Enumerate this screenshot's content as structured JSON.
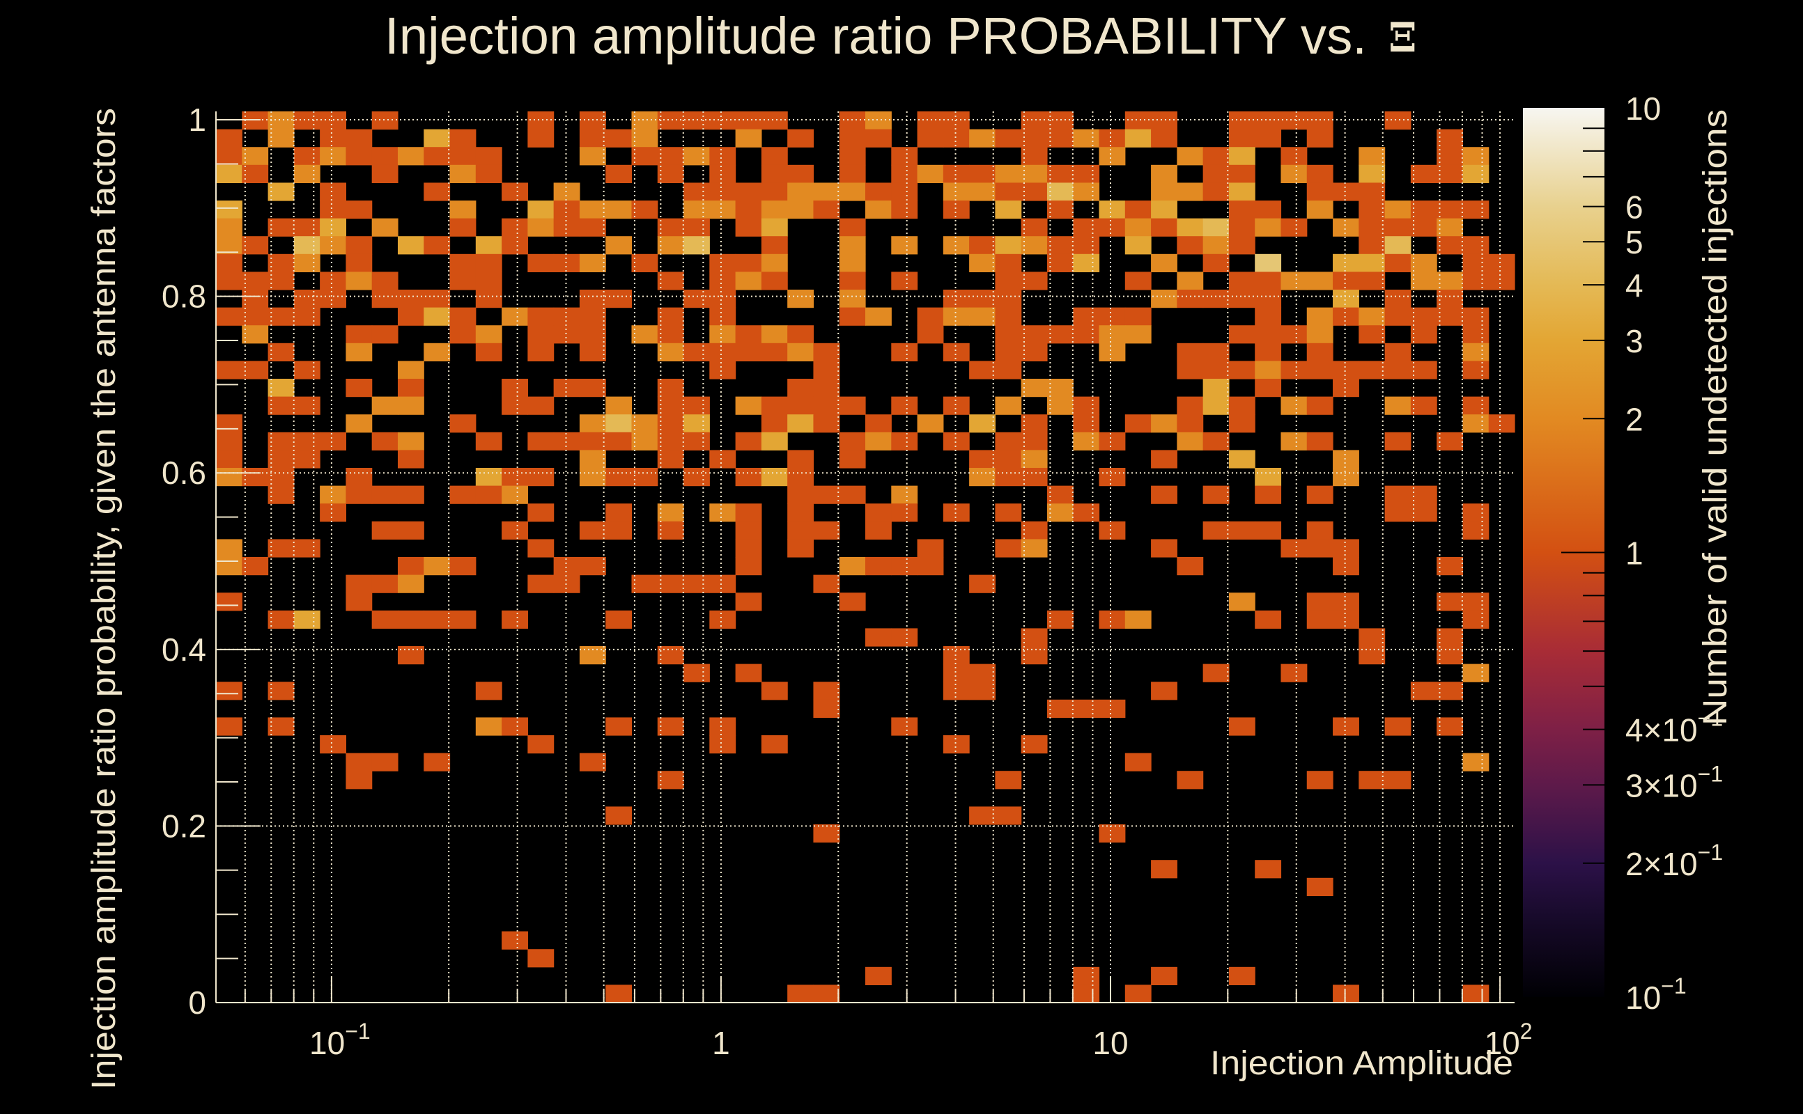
{
  "chart_data": {
    "type": "heatmap",
    "title": "Injection amplitude ratio PROBABILITY vs.",
    "title_symbol": "Ξ",
    "xlabel": "Injection Amplitude",
    "ylabel": "Injection amplitude ratio probability, given the antenna factors",
    "zlabel": "Number of valid undetected injections",
    "x_scale": "log",
    "xlim": [
      0.0505,
      109
    ],
    "ylim": [
      0,
      1.0095
    ],
    "z_scale": "log",
    "zlim": [
      0.1,
      10
    ],
    "grid": true,
    "x_bins": 50,
    "y_bins": 50,
    "x_ticks": [
      {
        "value": 0.1,
        "base": "10",
        "exp": "−1"
      },
      {
        "value": 1,
        "base": "1",
        "exp": ""
      },
      {
        "value": 10,
        "base": "10",
        "exp": ""
      },
      {
        "value": 100,
        "base": "10",
        "exp": "2"
      }
    ],
    "y_ticks": [
      {
        "value": 0,
        "label": "0"
      },
      {
        "value": 0.2,
        "label": "0.2"
      },
      {
        "value": 0.4,
        "label": "0.4"
      },
      {
        "value": 0.6,
        "label": "0.6"
      },
      {
        "value": 0.8,
        "label": "0.8"
      },
      {
        "value": 1,
        "label": "1"
      }
    ],
    "z_ticks": [
      {
        "value": 10,
        "base": "10",
        "exp": ""
      },
      {
        "value": 6,
        "base": "6",
        "exp": ""
      },
      {
        "value": 5,
        "base": "5",
        "exp": ""
      },
      {
        "value": 4,
        "base": "4",
        "exp": ""
      },
      {
        "value": 3,
        "base": "3",
        "exp": ""
      },
      {
        "value": 2,
        "base": "2",
        "exp": ""
      },
      {
        "value": 1,
        "base": "1",
        "exp": ""
      },
      {
        "value": 0.4,
        "base": "4×10",
        "exp": "−1"
      },
      {
        "value": 0.3,
        "base": "3×10",
        "exp": "−1"
      },
      {
        "value": 0.2,
        "base": "2×10",
        "exp": "−1"
      },
      {
        "value": 0.1,
        "base": "10",
        "exp": "−1"
      }
    ],
    "z_minor_ticks": [
      9,
      8,
      7,
      0.9,
      0.8,
      0.7,
      0.6,
      0.5
    ],
    "counts_legend": "rows listed from top y bin to bottom y bin; characters are x bins from low to high amplitude; '.' = 0",
    "counts": [
      ".1211.1.....1.1.211111..12.11..11..11..1111..1....",
      "1.2.11..31..1.112...2.1.11.1121112131..11.1....1..",
      "12.12112111...2.1121.1..1.1....1..2..213.1..2..12.",
      "31.2..1..21....1.1.1.11.1.12112211..2.11.21.3.113.",
      "..3.1...1..1.2....111122211.221142..2213..111.....",
      "3...11...2..31221.221221.21.1.3.1.313..11.2.12111.",
      "2.113.2..1.1211..11.13..1......1.112134121.21112..",
      "21.421.31.31...2.24..1..2.2.213211.3.121....14.11.",
      "1.12.1...11.112.1..112..2....21.13..2.1.5..3312.11",
      "111.121..11......1.121..1.1...11...1.2.112211.2211",
      ".1.11.111.1...11..11..2.2...111.....21111..3.1.1..",
      "1111...131.2111..1.1....12.1221..111....1.2121111.",
      ".2...11..12.111.21.2121....1..111122...1112.1.1.1.",
      "..1..2..2.1.1.1..2111121..1.1.11..2..11.1.1..1..2.",
      "11.1...2...........1...1.....11......1112111111.1.",
      "..3..1.1...1.11..1....11.......22.....3.1..1......",
      "..11..22...11..2.11.21111.1.1.2.21...131.21..21.1.",
      "1....2...1....24213..131.1.2.3.1.1.121.1........21",
      "1.111.12..1.1111211.13..121.1.11.21..21..21..1.1..",
      "1.11...1......2..1.1..1.1....112....1..3...2......",
      "211..1....311.211.1.131......211..1.....3..2......",
      "..1.2111.112..........111.2.....1...1.1.1.1..11...",
      "....1.......1..1.2.21.1..11.1.1.21...........11.1.",
      "......11...1..11.1..1.11.1.....1..1...111.1.....1.",
      "2.11........1.......1.1....1..12....1....111......",
      "21.....121...11.....1...2111.........1.....1...1..",
      ".....112....11..1111...1.....1....................",
      "1....1..............1...1..............2..11...11.",
      "..13..1111.1...1...1............1.12....1.11....1.",
      ".........................11....1............1..1..",
      ".......1......2..1..........1..1............1..1..",
      "..................1.1.......11........1..1......2.",
      "1.1.......1..........1.1....11......1.........11..",
      ".......................1........111...............",
      "1.1.......21...1.1.1......1............1...1.1.1..",
      "....1.......1......1.1......1..1..................",
      ".....11.1.....1....................1............2.",
      ".....1...........1............1......1....1.11....",
      "..................................................",
      "...............1.............11...................",
      ".......................1..........1...............",
      "..................................................",
      "....................................1...1.........",
      "..........................................1.......",
      "..................................................",
      "..................................................",
      "...........1......................................",
      "............1.....................................",
      ".........................1.......1..1..1..........",
      "...............1......11.........1.1.......1....1."
    ]
  },
  "colors": {
    "background": "#000000",
    "text": "#F0E6CC",
    "grid": "#F0E6CC",
    "levels": {
      "1": "#D35012",
      "2": "#E28A22",
      "3": "#E3A634",
      "4": "#E4B955",
      "5": "#E5C674"
    },
    "colormap_stops": [
      {
        "z": 0.1,
        "color": "#000004"
      },
      {
        "z": 0.15,
        "color": "#170a2a"
      },
      {
        "z": 0.2,
        "color": "#2c1148"
      },
      {
        "z": 0.3,
        "color": "#5e1a4a"
      },
      {
        "z": 0.4,
        "color": "#7e2046"
      },
      {
        "z": 0.6,
        "color": "#a82c36"
      },
      {
        "z": 1,
        "color": "#D35012"
      },
      {
        "z": 2,
        "color": "#E28A22"
      },
      {
        "z": 3,
        "color": "#E3A634"
      },
      {
        "z": 4,
        "color": "#E4B955"
      },
      {
        "z": 6,
        "color": "#E8D18E"
      },
      {
        "z": 10,
        "color": "#F7F6F1"
      }
    ]
  }
}
